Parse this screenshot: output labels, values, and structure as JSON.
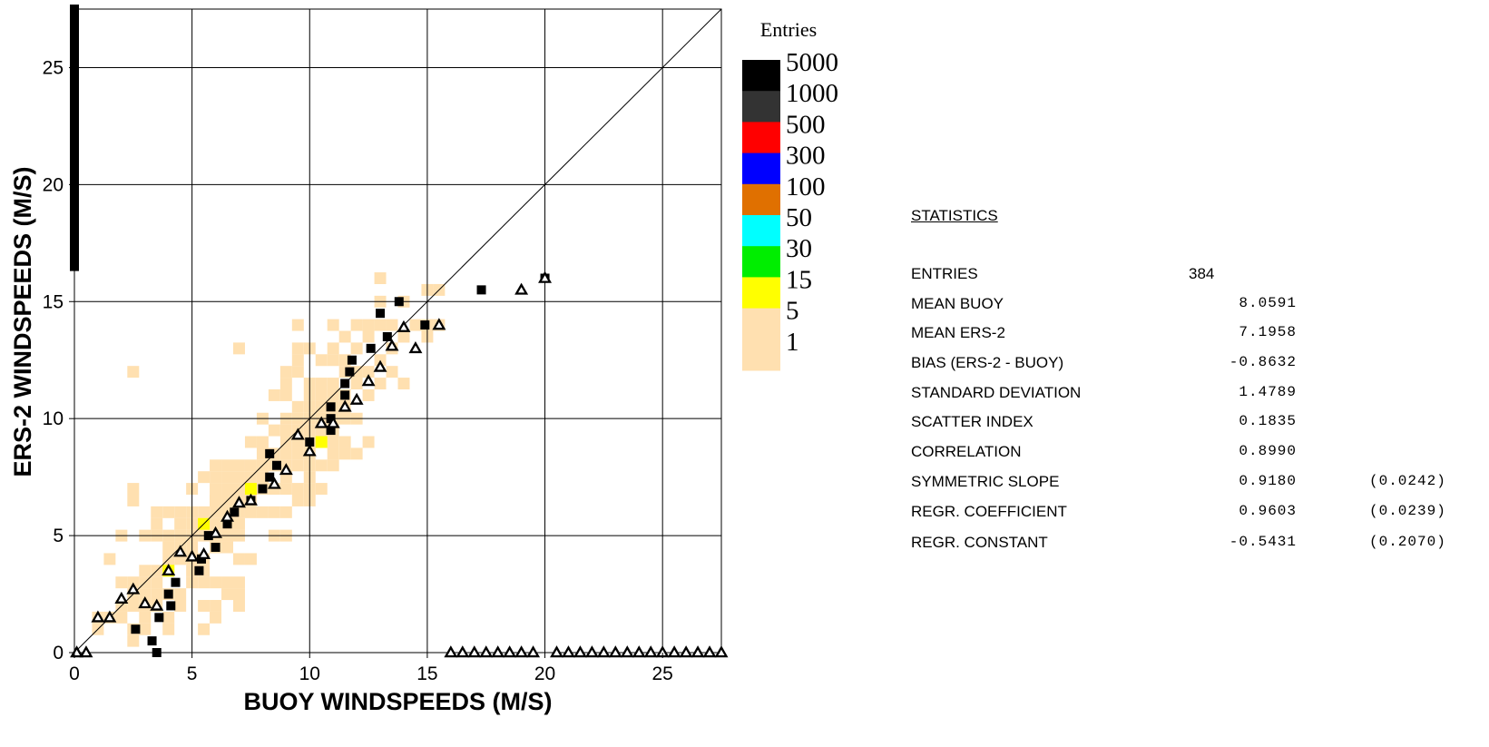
{
  "chart_data": {
    "type": "scatter",
    "xlabel": "BUOY  WINDSPEEDS (M/S)",
    "ylabel": "ERS-2  WINDSPEEDS (M/S)",
    "xlim": [
      0,
      27.5
    ],
    "ylim": [
      0,
      27.5
    ],
    "x_ticks": [
      "0",
      "5",
      "10",
      "15",
      "20",
      "25"
    ],
    "y_ticks": [
      "0",
      "5",
      "10",
      "15",
      "20",
      "25"
    ],
    "grid": true,
    "diagonal_line": "y = x",
    "legend": {
      "title": "Entries",
      "placement": "right",
      "levels": [
        {
          "label": "5000",
          "color": "#000000"
        },
        {
          "label": "1000",
          "color": "#333333"
        },
        {
          "label": "500",
          "color": "#ff0000"
        },
        {
          "label": "300",
          "color": "#0000ff"
        },
        {
          "label": "100",
          "color": "#e07000"
        },
        {
          "label": "50",
          "color": "#00ffff"
        },
        {
          "label": "30",
          "color": "#00ee00"
        },
        {
          "label": "15",
          "color": "#ffff00"
        },
        {
          "label": "5",
          "color": "#ffe0b0"
        },
        {
          "label": "1",
          "color": "#ffe0b0"
        }
      ]
    },
    "density_cells": [
      [
        1,
        1
      ],
      [
        1,
        1.5
      ],
      [
        1.5,
        1.5
      ],
      [
        2,
        1.5
      ],
      [
        2,
        2
      ],
      [
        2.5,
        2
      ],
      [
        2.5,
        2.5
      ],
      [
        3,
        2.5
      ],
      [
        2.5,
        1
      ],
      [
        2.5,
        0.5
      ],
      [
        2,
        3
      ],
      [
        2.5,
        3
      ],
      [
        3,
        3
      ],
      [
        3.5,
        3
      ],
      [
        3,
        3.5
      ],
      [
        3.5,
        3.5
      ],
      [
        4,
        3.5
      ],
      [
        4,
        4
      ],
      [
        4.5,
        4
      ],
      [
        3.5,
        2.5
      ],
      [
        3,
        2
      ],
      [
        3.5,
        2
      ],
      [
        3,
        1.5
      ],
      [
        4,
        1.5
      ],
      [
        4,
        2.5
      ],
      [
        4.5,
        2.5
      ],
      [
        5,
        3
      ],
      [
        5.5,
        3
      ],
      [
        5,
        3.5
      ],
      [
        5.5,
        3.5
      ],
      [
        2.5,
        7
      ],
      [
        2.5,
        6.5
      ],
      [
        2,
        5
      ],
      [
        1.5,
        4
      ],
      [
        3,
        5
      ],
      [
        3.5,
        5
      ],
      [
        3.5,
        5.5
      ],
      [
        3.5,
        6
      ],
      [
        4,
        6
      ],
      [
        4.5,
        6
      ],
      [
        4,
        5
      ],
      [
        4.5,
        5
      ],
      [
        5,
        5
      ],
      [
        5.5,
        5
      ],
      [
        5,
        5.5
      ],
      [
        5.5,
        5.5
      ],
      [
        5,
        6
      ],
      [
        5.5,
        6
      ],
      [
        6,
        6
      ],
      [
        6,
        5.5
      ],
      [
        6,
        5
      ],
      [
        6,
        4.5
      ],
      [
        6.5,
        4.5
      ],
      [
        6.5,
        5
      ],
      [
        7,
        5
      ],
      [
        6.5,
        5.5
      ],
      [
        7,
        5.5
      ],
      [
        7,
        6
      ],
      [
        7.5,
        6
      ],
      [
        7.5,
        6.5
      ],
      [
        6.5,
        6.5
      ],
      [
        6,
        6.5
      ],
      [
        6,
        7
      ],
      [
        6.5,
        7
      ],
      [
        7,
        7
      ],
      [
        7.5,
        7
      ],
      [
        8,
        7
      ],
      [
        8,
        7.5
      ],
      [
        7.5,
        7.5
      ],
      [
        7,
        7.5
      ],
      [
        5.5,
        7.5
      ],
      [
        6,
        7.5
      ],
      [
        6.5,
        7.5
      ],
      [
        6,
        8
      ],
      [
        6.5,
        8
      ],
      [
        7,
        8
      ],
      [
        7.5,
        8
      ],
      [
        8,
        8
      ],
      [
        8.5,
        8
      ],
      [
        8,
        8.5
      ],
      [
        8.5,
        8.5
      ],
      [
        9,
        8.5
      ],
      [
        9,
        9
      ],
      [
        9.5,
        9
      ],
      [
        10,
        9
      ],
      [
        10.5,
        9
      ],
      [
        11,
        9
      ],
      [
        9.5,
        9.5
      ],
      [
        10,
        9.5
      ],
      [
        10.5,
        9.5
      ],
      [
        11,
        9.5
      ],
      [
        9,
        10
      ],
      [
        9.5,
        10
      ],
      [
        10,
        10
      ],
      [
        10.5,
        10
      ],
      [
        11,
        10
      ],
      [
        11.5,
        10
      ],
      [
        12,
        10
      ],
      [
        10,
        10.5
      ],
      [
        10.5,
        10.5
      ],
      [
        11,
        10.5
      ],
      [
        11.5,
        10.5
      ],
      [
        10,
        11
      ],
      [
        10.5,
        11
      ],
      [
        11,
        11
      ],
      [
        11.5,
        11
      ],
      [
        10,
        11.5
      ],
      [
        10.5,
        11.5
      ],
      [
        11,
        11.5
      ],
      [
        11.5,
        12
      ],
      [
        10.5,
        12.5
      ],
      [
        11,
        12.5
      ],
      [
        11.5,
        12.5
      ],
      [
        11,
        13
      ],
      [
        10,
        13
      ],
      [
        11.5,
        13.5
      ],
      [
        11,
        14
      ],
      [
        12.5,
        11
      ],
      [
        12,
        11.5
      ],
      [
        12.5,
        12
      ],
      [
        13,
        12.5
      ],
      [
        13,
        11.5
      ],
      [
        13.5,
        12
      ],
      [
        13.5,
        13
      ],
      [
        14,
        13.5
      ],
      [
        14.5,
        14
      ],
      [
        15,
        14
      ],
      [
        15.5,
        14
      ],
      [
        15,
        13.5
      ],
      [
        13.5,
        14
      ],
      [
        13,
        14
      ],
      [
        13,
        15
      ],
      [
        14,
        11.5
      ],
      [
        15,
        15.5
      ],
      [
        15.5,
        15.5
      ],
      [
        9.5,
        10.5
      ],
      [
        9,
        11
      ],
      [
        8.5,
        11
      ],
      [
        8,
        10
      ],
      [
        8.5,
        9.5
      ],
      [
        9,
        9.5
      ],
      [
        8,
        9
      ],
      [
        7.5,
        9
      ],
      [
        8.5,
        8
      ],
      [
        9,
        7.5
      ],
      [
        9.5,
        7
      ],
      [
        10,
        6.5
      ],
      [
        10,
        7
      ],
      [
        10.5,
        7
      ],
      [
        10,
        7.5
      ],
      [
        10,
        8
      ],
      [
        10.5,
        8
      ],
      [
        11,
        8.5
      ],
      [
        11.5,
        8.5
      ],
      [
        11,
        8
      ],
      [
        12,
        8.5
      ],
      [
        12.5,
        9
      ],
      [
        11.5,
        9
      ],
      [
        10,
        8.5
      ],
      [
        9.5,
        8
      ],
      [
        8.5,
        6
      ],
      [
        8,
        6
      ],
      [
        9,
        6
      ],
      [
        9.5,
        6.5
      ],
      [
        9,
        5
      ],
      [
        8.5,
        5
      ],
      [
        6.5,
        3
      ],
      [
        7,
        3
      ],
      [
        6.5,
        2.5
      ],
      [
        7,
        2.5
      ],
      [
        7.5,
        4
      ],
      [
        7,
        4
      ],
      [
        6,
        3
      ],
      [
        5.5,
        4
      ],
      [
        5,
        4.5
      ],
      [
        4.5,
        4.5
      ],
      [
        6,
        2
      ],
      [
        5.5,
        2
      ],
      [
        6,
        1.5
      ],
      [
        5.5,
        1
      ],
      [
        7,
        2
      ],
      [
        4,
        1
      ],
      [
        3,
        1
      ],
      [
        4.5,
        2
      ],
      [
        2.5,
        12
      ],
      [
        9.5,
        12.5
      ],
      [
        9.5,
        13
      ],
      [
        9.5,
        12
      ],
      [
        12,
        13
      ],
      [
        9,
        11.5
      ],
      [
        12.5,
        14
      ],
      [
        13,
        16
      ],
      [
        9,
        12
      ],
      [
        9.5,
        14
      ],
      [
        12,
        12
      ],
      [
        7,
        13
      ],
      [
        12.5,
        13.5
      ],
      [
        12,
        14
      ],
      [
        14,
        15
      ],
      [
        9.5,
        8.5
      ],
      [
        6,
        6.5
      ],
      [
        6.5,
        6
      ],
      [
        7,
        6.5
      ],
      [
        8.5,
        7
      ],
      [
        9,
        8
      ],
      [
        9,
        7
      ],
      [
        5,
        7
      ],
      [
        4.5,
        5.5
      ],
      [
        4,
        4.5
      ],
      [
        5,
        4
      ]
    ],
    "yellow_cells": [
      [
        7.5,
        7
      ],
      [
        10.5,
        9
      ],
      [
        5.5,
        5.5
      ],
      [
        4,
        3.5
      ]
    ],
    "buoy_squares": [
      [
        2.6,
        1.0
      ],
      [
        3.3,
        0.5
      ],
      [
        3.5,
        0.0
      ],
      [
        3.6,
        1.5
      ],
      [
        4.0,
        2.5
      ],
      [
        4.1,
        2.0
      ],
      [
        4.3,
        3.0
      ],
      [
        5.3,
        3.5
      ],
      [
        5.4,
        4.0
      ],
      [
        5.7,
        5.0
      ],
      [
        6.0,
        4.5
      ],
      [
        6.5,
        5.5
      ],
      [
        6.8,
        6.0
      ],
      [
        7.5,
        6.5
      ],
      [
        8.0,
        7.0
      ],
      [
        8.3,
        7.5
      ],
      [
        8.3,
        8.5
      ],
      [
        8.6,
        8.0
      ],
      [
        10.0,
        9.0
      ],
      [
        10.9,
        9.5
      ],
      [
        10.9,
        10.0
      ],
      [
        10.9,
        10.5
      ],
      [
        11.5,
        11.0
      ],
      [
        11.5,
        11.5
      ],
      [
        11.7,
        12.0
      ],
      [
        11.8,
        12.5
      ],
      [
        12.6,
        13.0
      ],
      [
        13.0,
        14.5
      ],
      [
        13.3,
        13.5
      ],
      [
        13.8,
        15.0
      ],
      [
        14.9,
        14.0
      ],
      [
        17.3,
        15.5
      ],
      [
        20.0,
        16.0
      ]
    ],
    "ers_triangles": [
      [
        0.1,
        0.0
      ],
      [
        0.5,
        0.0
      ],
      [
        1.0,
        1.5
      ],
      [
        1.5,
        1.5
      ],
      [
        2.0,
        2.3
      ],
      [
        2.5,
        2.7
      ],
      [
        3.0,
        2.1
      ],
      [
        3.5,
        2.0
      ],
      [
        4.0,
        3.5
      ],
      [
        4.5,
        4.3
      ],
      [
        5.0,
        4.1
      ],
      [
        5.5,
        4.2
      ],
      [
        6.0,
        5.1
      ],
      [
        6.5,
        5.8
      ],
      [
        7.0,
        6.4
      ],
      [
        7.5,
        6.5
      ],
      [
        8.5,
        7.2
      ],
      [
        9.0,
        7.8
      ],
      [
        9.5,
        9.3
      ],
      [
        10.0,
        8.6
      ],
      [
        10.5,
        9.8
      ],
      [
        11.0,
        9.8
      ],
      [
        11.5,
        10.5
      ],
      [
        12.0,
        10.8
      ],
      [
        12.5,
        11.6
      ],
      [
        13.0,
        12.2
      ],
      [
        13.5,
        13.1
      ],
      [
        14.0,
        13.9
      ],
      [
        14.5,
        13.0
      ],
      [
        15.5,
        14.0
      ],
      [
        19.0,
        15.5
      ],
      [
        20.0,
        16.0
      ]
    ],
    "y_axis_squares_from": 16.5,
    "x_axis_triangles": [
      16,
      16.5,
      17,
      17.5,
      18,
      18.5,
      19,
      19.5,
      20.5,
      21,
      21.5,
      22,
      22.5,
      23,
      23.5,
      24,
      24.5,
      25,
      25.5,
      26,
      26.5,
      27,
      27.5
    ]
  },
  "statistics": {
    "title": "STATISTICS",
    "rows": [
      {
        "label": "ENTRIES",
        "value": "384",
        "err": ""
      },
      {
        "label": "MEAN BUOY",
        "value": "8.0591",
        "err": ""
      },
      {
        "label": "MEAN ERS-2",
        "value": "7.1958",
        "err": ""
      },
      {
        "label": "BIAS (ERS-2 - BUOY)",
        "value": "-0.8632",
        "err": ""
      },
      {
        "label": "STANDARD DEVIATION",
        "value": "1.4789",
        "err": ""
      },
      {
        "label": "SCATTER INDEX",
        "value": "0.1835",
        "err": ""
      },
      {
        "label": "CORRELATION",
        "value": "0.8990",
        "err": ""
      },
      {
        "label": "SYMMETRIC SLOPE",
        "value": "0.9180",
        "err": "(0.0242)"
      },
      {
        "label": "REGR. COEFFICIENT",
        "value": "0.9603",
        "err": "(0.0239)"
      },
      {
        "label": "REGR. CONSTANT",
        "value": "-0.5431",
        "err": "(0.2070)"
      }
    ]
  }
}
